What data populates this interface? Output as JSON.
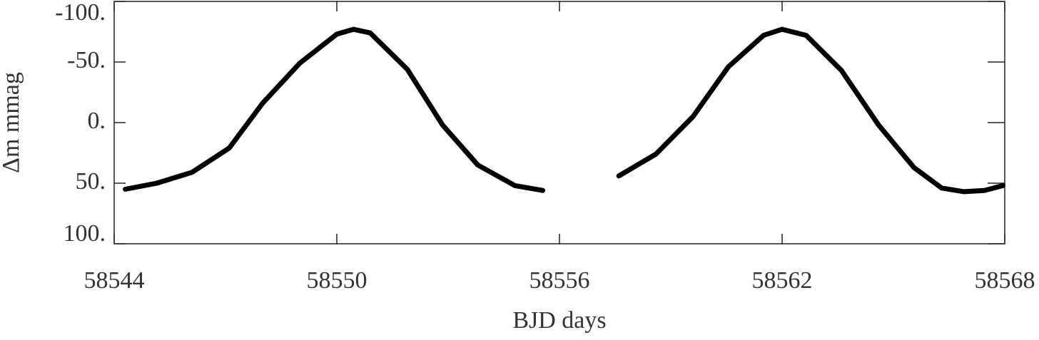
{
  "chart_data": {
    "type": "line",
    "x_label": "BJD days",
    "y_label": "Δm mmag",
    "x": [
      58544.3,
      58545.15,
      58546.1,
      58547.1,
      58548.0,
      58549.0,
      58550.0,
      58550.45,
      58550.9,
      58551.9,
      58552.85,
      58553.8,
      58554.8,
      58555.55,
      58556.5,
      58557.6,
      58558.6,
      58559.6,
      58560.55,
      58561.5,
      58562.0,
      58562.65,
      58563.6,
      58564.6,
      58565.55,
      58566.3,
      58566.9,
      58567.45,
      58567.95
    ],
    "series": [
      {
        "color": "#000000",
        "values": [
          55,
          50,
          41,
          21,
          -16,
          -49,
          -73,
          -77,
          -74,
          -44,
          2,
          35,
          52,
          56,
          null,
          44,
          26,
          -5,
          -46,
          -72,
          -77,
          -72,
          -43,
          2,
          37,
          54,
          57,
          56,
          52
        ]
      }
    ],
    "xlim": [
      58544,
      58568
    ],
    "xticks": [
      58544,
      58550,
      58556,
      58562,
      58568
    ],
    "ylim": [
      100,
      -100
    ],
    "yticks": [
      {
        "value": -100,
        "label": "-100."
      },
      {
        "value": -50,
        "label": "-50."
      },
      {
        "value": 0,
        "label": "0."
      },
      {
        "value": 50,
        "label": "50."
      },
      {
        "value": 100,
        "label": "100."
      }
    ]
  }
}
